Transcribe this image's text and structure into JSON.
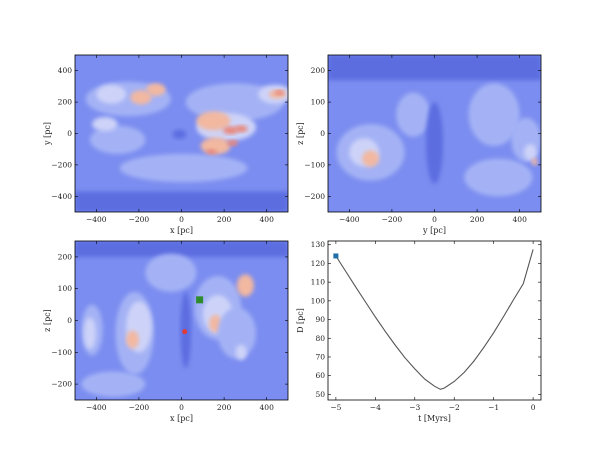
{
  "chart_data": [
    {
      "type": "heatmap",
      "xlabel": "x [pc]",
      "ylabel": "y [pc]",
      "xlim": [
        -500,
        500
      ],
      "ylim": [
        -500,
        500
      ],
      "xticks": [
        "−400",
        "−200",
        "0",
        "200",
        "400"
      ],
      "yticks": [
        "400",
        "200",
        "0",
        "−200",
        "−400"
      ],
      "background_level": 1,
      "blobs": [
        {
          "x": -250,
          "y": 220,
          "sx": 200,
          "sy": 110,
          "level": 2
        },
        {
          "x": -330,
          "y": 250,
          "sx": 70,
          "sy": 60,
          "level": 3
        },
        {
          "x": -190,
          "y": 230,
          "sx": 50,
          "sy": 45,
          "level": 4
        },
        {
          "x": -120,
          "y": 280,
          "sx": 45,
          "sy": 40,
          "level": 4
        },
        {
          "x": 250,
          "y": 200,
          "sx": 230,
          "sy": 120,
          "level": 2
        },
        {
          "x": 210,
          "y": 40,
          "sx": 140,
          "sy": 90,
          "level": 3
        },
        {
          "x": 150,
          "y": 80,
          "sx": 80,
          "sy": 60,
          "level": 4
        },
        {
          "x": 230,
          "y": 20,
          "sx": 35,
          "sy": 25,
          "level": 5
        },
        {
          "x": 280,
          "y": 30,
          "sx": 30,
          "sy": 22,
          "level": 5
        },
        {
          "x": 160,
          "y": -80,
          "sx": 70,
          "sy": 55,
          "level": 4
        },
        {
          "x": 140,
          "y": -120,
          "sx": 26,
          "sy": 20,
          "level": 5
        },
        {
          "x": 240,
          "y": -60,
          "sx": 26,
          "sy": 20,
          "level": 5
        },
        {
          "x": -300,
          "y": -40,
          "sx": 130,
          "sy": 90,
          "level": 2
        },
        {
          "x": -360,
          "y": 60,
          "sx": 60,
          "sy": 45,
          "level": 3
        },
        {
          "x": 440,
          "y": 250,
          "sx": 80,
          "sy": 60,
          "level": 3
        },
        {
          "x": 450,
          "y": 250,
          "sx": 40,
          "sy": 28,
          "level": 4
        },
        {
          "x": 460,
          "y": 260,
          "sx": 22,
          "sy": 16,
          "level": 5
        },
        {
          "x": -10,
          "y": -5,
          "sx": 32,
          "sy": 30,
          "level": 0
        },
        {
          "x": 10,
          "y": -220,
          "sx": 300,
          "sy": 90,
          "level": 2
        }
      ],
      "bands": [
        {
          "y0": -500,
          "y1": -370,
          "level": 0
        }
      ]
    },
    {
      "type": "heatmap",
      "xlabel": "y [pc]",
      "ylabel": "z [pc]",
      "xlim": [
        -500,
        500
      ],
      "ylim": [
        -250,
        250
      ],
      "xticks": [
        "−400",
        "−200",
        "0",
        "200",
        "400"
      ],
      "yticks": [
        "200",
        "100",
        "0",
        "−100",
        "−200"
      ],
      "background_level": 1,
      "blobs": [
        {
          "x": -300,
          "y": -60,
          "sx": 160,
          "sy": 90,
          "level": 2
        },
        {
          "x": -330,
          "y": -60,
          "sx": 70,
          "sy": 45,
          "level": 3
        },
        {
          "x": -300,
          "y": -80,
          "sx": 40,
          "sy": 26,
          "level": 4
        },
        {
          "x": -100,
          "y": 60,
          "sx": 80,
          "sy": 70,
          "level": 2
        },
        {
          "x": 280,
          "y": 60,
          "sx": 120,
          "sy": 100,
          "level": 2
        },
        {
          "x": 430,
          "y": -20,
          "sx": 70,
          "sy": 70,
          "level": 2
        },
        {
          "x": 450,
          "y": -60,
          "sx": 30,
          "sy": 26,
          "level": 3
        },
        {
          "x": 470,
          "y": -90,
          "sx": 14,
          "sy": 12,
          "level": 4
        },
        {
          "x": 300,
          "y": -140,
          "sx": 160,
          "sy": 60,
          "level": 2
        },
        {
          "x": 0,
          "y": -30,
          "sx": 40,
          "sy": 130,
          "level": 0
        }
      ],
      "bands": [
        {
          "y0": 170,
          "y1": 250,
          "level": 0
        }
      ]
    },
    {
      "type": "heatmap",
      "xlabel": "x [pc]",
      "ylabel": "z [pc]",
      "xlim": [
        -500,
        500
      ],
      "ylim": [
        -250,
        250
      ],
      "xticks": [
        "−400",
        "−200",
        "0",
        "200",
        "400"
      ],
      "yticks": [
        "200",
        "100",
        "0",
        "−100",
        "−200"
      ],
      "background_level": 1,
      "blobs": [
        {
          "x": -220,
          "y": -40,
          "sx": 90,
          "sy": 130,
          "level": 2
        },
        {
          "x": -200,
          "y": -20,
          "sx": 60,
          "sy": 80,
          "level": 3
        },
        {
          "x": -230,
          "y": -60,
          "sx": 30,
          "sy": 28,
          "level": 4
        },
        {
          "x": -420,
          "y": -30,
          "sx": 50,
          "sy": 80,
          "level": 2
        },
        {
          "x": -430,
          "y": -40,
          "sx": 28,
          "sy": 50,
          "level": 3
        },
        {
          "x": 170,
          "y": 40,
          "sx": 110,
          "sy": 100,
          "level": 2
        },
        {
          "x": 170,
          "y": 20,
          "sx": 70,
          "sy": 60,
          "level": 3
        },
        {
          "x": 160,
          "y": -10,
          "sx": 30,
          "sy": 28,
          "level": 4
        },
        {
          "x": 260,
          "y": -40,
          "sx": 90,
          "sy": 80,
          "level": 2
        },
        {
          "x": 280,
          "y": -100,
          "sx": 26,
          "sy": 24,
          "level": 3
        },
        {
          "x": -50,
          "y": 150,
          "sx": 120,
          "sy": 60,
          "level": 2
        },
        {
          "x": -320,
          "y": -200,
          "sx": 150,
          "sy": 40,
          "level": 2
        },
        {
          "x": 300,
          "y": 110,
          "sx": 40,
          "sy": 35,
          "level": 4
        },
        {
          "x": 20,
          "y": -30,
          "sx": 25,
          "sy": 120,
          "level": 0
        }
      ],
      "bands": [
        {
          "y0": 200,
          "y1": 250,
          "level": 0
        }
      ],
      "markers": [
        {
          "shape": "square",
          "x": 85,
          "y": 65,
          "color": "#2e8b2e"
        },
        {
          "shape": "circle",
          "x": 15,
          "y": -35,
          "color": "#e53935"
        }
      ]
    },
    {
      "type": "line",
      "xlabel": "t [Myrs]",
      "ylabel": "D [pc]",
      "xlim": [
        -5.2,
        0.2
      ],
      "ylim": [
        47,
        132
      ],
      "xtick_values": [
        -5,
        -4,
        -3,
        -2,
        -1,
        0
      ],
      "xticks": [
        "−5",
        "−4",
        "−3",
        "−2",
        "−1",
        "0"
      ],
      "ytick_values": [
        50,
        60,
        70,
        80,
        90,
        100,
        110,
        120,
        130
      ],
      "yticks": [
        "50",
        "60",
        "70",
        "80",
        "90",
        "100",
        "110",
        "120",
        "130"
      ],
      "series": [
        {
          "color": "#555555",
          "x": [
            -5.0,
            -4.75,
            -4.5,
            -4.25,
            -4.0,
            -3.75,
            -3.5,
            -3.25,
            -3.0,
            -2.75,
            -2.5,
            -2.35,
            -2.25,
            -2.0,
            -1.75,
            -1.5,
            -1.25,
            -1.0,
            -0.75,
            -0.5,
            -0.25,
            0.0
          ],
          "y": [
            124.0,
            115.7,
            107.5,
            99.4,
            91.4,
            83.7,
            76.4,
            69.6,
            63.6,
            58.2,
            54.4,
            52.7,
            53.4,
            56.9,
            61.7,
            67.8,
            75.1,
            83.0,
            91.6,
            100.5,
            109.2,
            127.5
          ]
        }
      ],
      "markers": [
        {
          "shape": "square",
          "x": -5.0,
          "y": 124.0,
          "color": "#1f6fa8"
        }
      ]
    }
  ],
  "palette": [
    "#5b6de0",
    "#7b8df0",
    "#a4b2f5",
    "#cdd3f8",
    "#f2b8a0",
    "#e8877a"
  ]
}
